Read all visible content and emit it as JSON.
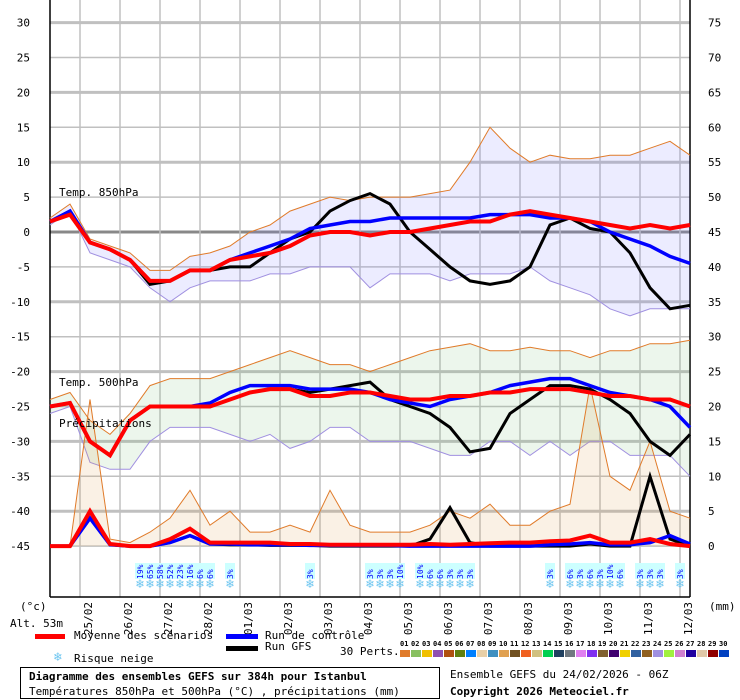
{
  "chart_data": {
    "type": "line",
    "time_step_hours": 12,
    "x_tick_labels": [
      "25/02",
      "26/02",
      "27/02",
      "28/02",
      "01/03",
      "02/03",
      "03/03",
      "04/03",
      "05/03",
      "06/03",
      "07/03",
      "08/03",
      "09/03",
      "10/03",
      "11/03",
      "12/03"
    ],
    "y_left": {
      "unit": "(°c)",
      "ylim": [
        -45,
        30
      ],
      "ticks": [
        30,
        25,
        20,
        15,
        10,
        5,
        0,
        -5,
        -10,
        -15,
        -20,
        -25,
        -30,
        -35,
        -40,
        -45
      ]
    },
    "y_right": {
      "unit": "(mm)",
      "ylim": [
        0,
        75
      ],
      "ticks": [
        75,
        70,
        65,
        60,
        55,
        50,
        45,
        40,
        35,
        30,
        25,
        20,
        15,
        10,
        5,
        0
      ]
    },
    "grid": true,
    "panels": {
      "t850": {
        "label": "Temp. 850hPa",
        "mean": [
          1.5,
          2.5,
          -1.5,
          -2.5,
          -4,
          -7,
          -7,
          -5.5,
          -5.5,
          -4,
          -3.5,
          -3,
          -2,
          -0.5,
          0,
          0,
          -0.5,
          0,
          0,
          0.5,
          1,
          1.5,
          1.5,
          2.5,
          3,
          2.5,
          2,
          1.5,
          1,
          0.5,
          1,
          0.5,
          1
        ],
        "control": [
          1.5,
          3,
          -1.5,
          -2.5,
          -4,
          -7,
          -7,
          -5.5,
          -5.5,
          -4,
          -3,
          -2,
          -1,
          0.5,
          1,
          1.5,
          1.5,
          2,
          2,
          2,
          2,
          2,
          2.5,
          2.5,
          2.5,
          2,
          2,
          1.5,
          0,
          -1,
          -2,
          -3.5,
          -4.5
        ],
        "gfs": [
          1.5,
          3,
          -1.5,
          -2.5,
          -4,
          -7.5,
          -7,
          -5.5,
          -5.5,
          -5,
          -5,
          -3,
          -1,
          0,
          3,
          4.5,
          5.5,
          4,
          0,
          -2.5,
          -5,
          -7,
          -7.5,
          -7,
          -5,
          1,
          2,
          0.5,
          0,
          -3,
          -8,
          -11,
          -10.5
        ],
        "perturbations_max": [
          2,
          4,
          -1,
          -2,
          -3,
          -5.5,
          -5.5,
          -3.5,
          -3,
          -2,
          0,
          1,
          3,
          4,
          5,
          4.5,
          5,
          5,
          5,
          5.5,
          6,
          10,
          15,
          12,
          10,
          11,
          10.5,
          10.5,
          11,
          11,
          12,
          13,
          11
        ],
        "perturbations_min": [
          1,
          3,
          -3,
          -4,
          -5,
          -8,
          -10,
          -8,
          -7,
          -7,
          -7,
          -6,
          -6,
          -5,
          -5,
          -5,
          -8,
          -6,
          -6,
          -6,
          -7,
          -6,
          -6,
          -6,
          -5,
          -7,
          -8,
          -9,
          -11,
          -12,
          -11,
          -11,
          -11
        ]
      },
      "t500": {
        "label": "Temp. 500hPa",
        "mean": [
          -25,
          -24.5,
          -30,
          -32,
          -27,
          -25,
          -25,
          -25,
          -25,
          -24,
          -23,
          -22.5,
          -22.5,
          -23.5,
          -23.5,
          -23,
          -23,
          -23.5,
          -24,
          -24,
          -23.5,
          -23.5,
          -23,
          -23,
          -22.5,
          -22.5,
          -22.5,
          -23,
          -23.5,
          -23.5,
          -24,
          -24,
          -25
        ],
        "control": [
          -25,
          -24.5,
          -30,
          -32,
          -27,
          -25,
          -25,
          -25,
          -24.5,
          -23,
          -22,
          -22,
          -22,
          -22.5,
          -22.5,
          -22.5,
          -23,
          -24,
          -24.5,
          -25,
          -24,
          -23.5,
          -23,
          -22,
          -21.5,
          -21,
          -21,
          -22,
          -23,
          -23.5,
          -24,
          -25,
          -28
        ],
        "gfs": [
          -25,
          -24.5,
          -30,
          -32,
          -27,
          -25,
          -25,
          -25,
          -25,
          -24,
          -23,
          -22.5,
          -22.5,
          -23,
          -22.5,
          -22,
          -21.5,
          -24,
          -25,
          -26,
          -28,
          -31.5,
          -31,
          -26,
          -24,
          -22,
          -22,
          -22.5,
          -24,
          -26,
          -30,
          -32,
          -29
        ],
        "perturbations_max": [
          -24,
          -23,
          -27,
          -29,
          -26,
          -22,
          -21,
          -21,
          -21,
          -20,
          -19,
          -18,
          -17,
          -18,
          -19,
          -19,
          -20,
          -19,
          -18,
          -17,
          -16.5,
          -16,
          -17,
          -17,
          -16.5,
          -17,
          -17,
          -18,
          -17,
          -17,
          -16,
          -16,
          -15.5
        ],
        "perturbations_min": [
          -26,
          -25,
          -33,
          -34,
          -34,
          -30,
          -28,
          -28,
          -28,
          -29,
          -30,
          -29,
          -31,
          -30,
          -28,
          -28,
          -30,
          -30,
          -30,
          -31,
          -32,
          -32,
          -30,
          -30,
          -32,
          -30,
          -32,
          -30,
          -30,
          -32,
          -32,
          -32,
          -35
        ]
      },
      "precip": {
        "label": "Précipitations",
        "mean": [
          0,
          0,
          5,
          0.3,
          0,
          0,
          1,
          2.5,
          0.5,
          0.5,
          0.5,
          0.5,
          0.3,
          0.3,
          0.2,
          0.2,
          0.2,
          0.2,
          0.2,
          0.3,
          0.2,
          0.3,
          0.4,
          0.5,
          0.5,
          0.7,
          0.8,
          1.5,
          0.5,
          0.5,
          1,
          0.3,
          0
        ],
        "control": [
          0,
          0,
          4,
          0.2,
          0,
          0,
          0.5,
          1.5,
          0.3,
          0.3,
          0.2,
          0.2,
          0.2,
          0.1,
          0.1,
          0.1,
          0.1,
          0.1,
          0,
          0,
          0,
          0,
          0,
          0,
          0,
          0.2,
          0.3,
          0.5,
          0.2,
          0.2,
          0.5,
          1.5,
          0.3
        ],
        "gfs": [
          0,
          0,
          4,
          0.2,
          0,
          0,
          0.5,
          1.5,
          0.3,
          0.2,
          0.2,
          0.1,
          0.1,
          0.1,
          0,
          0,
          0,
          0,
          0,
          1,
          5.5,
          0.5,
          0,
          0,
          0,
          0,
          0,
          0.3,
          0,
          0,
          10,
          1,
          0
        ],
        "perturbations_max": [
          0,
          0,
          21,
          1,
          0.5,
          2,
          4,
          8,
          3,
          5,
          2,
          2,
          3,
          2,
          8,
          3,
          2,
          2,
          2,
          3,
          5,
          4,
          6,
          3,
          3,
          5,
          6,
          23,
          10,
          8,
          15,
          5,
          4
        ]
      }
    },
    "snow_risk": [
      {
        "hour": 54,
        "pct": "19%"
      },
      {
        "hour": 60,
        "pct": "65%"
      },
      {
        "hour": 66,
        "pct": "58%"
      },
      {
        "hour": 72,
        "pct": "52%"
      },
      {
        "hour": 78,
        "pct": "23%"
      },
      {
        "hour": 84,
        "pct": "16%"
      },
      {
        "hour": 90,
        "pct": "6%"
      },
      {
        "hour": 96,
        "pct": "6%"
      },
      {
        "hour": 108,
        "pct": "3%"
      },
      {
        "hour": 156,
        "pct": "3%"
      },
      {
        "hour": 192,
        "pct": "3%"
      },
      {
        "hour": 198,
        "pct": "3%"
      },
      {
        "hour": 204,
        "pct": "3%"
      },
      {
        "hour": 210,
        "pct": "10%"
      },
      {
        "hour": 222,
        "pct": "10%"
      },
      {
        "hour": 228,
        "pct": "6%"
      },
      {
        "hour": 234,
        "pct": "6%"
      },
      {
        "hour": 240,
        "pct": "3%"
      },
      {
        "hour": 246,
        "pct": "3%"
      },
      {
        "hour": 252,
        "pct": "3%"
      },
      {
        "hour": 300,
        "pct": "3%"
      },
      {
        "hour": 312,
        "pct": "6%"
      },
      {
        "hour": 318,
        "pct": "3%"
      },
      {
        "hour": 324,
        "pct": "6%"
      },
      {
        "hour": 330,
        "pct": "3%"
      },
      {
        "hour": 336,
        "pct": "10%"
      },
      {
        "hour": 342,
        "pct": "6%"
      },
      {
        "hour": 354,
        "pct": "3%"
      },
      {
        "hour": 360,
        "pct": "3%"
      },
      {
        "hour": 366,
        "pct": "3%"
      },
      {
        "hour": 378,
        "pct": "3%"
      }
    ],
    "colors": {
      "mean": "#ff0000",
      "control": "#0000ff",
      "gfs": "#000000",
      "snow": "#6ec6f0"
    }
  },
  "labels": {
    "alt": "Alt. 53m",
    "legend_mean": "Moyenne des scénarios",
    "legend_control": "Run de contrôle",
    "legend_gfs": "Run GFS",
    "legend_snow": "Risque neige",
    "perts_label": "30 Perts.",
    "title": "Diagramme des ensembles GEFS sur 384h pour Istanbul",
    "subtitle": "Températures 850hPa et 500hPa (°C) , précipitations (mm)",
    "run": "Ensemble GEFS du 24/02/2026 - 06Z",
    "copyright": "Copyright 2026 Meteociel.fr"
  },
  "perturbations": [
    {
      "n": "01",
      "color": "#e07b2a"
    },
    {
      "n": "02",
      "color": "#88c060"
    },
    {
      "n": "03",
      "color": "#f0c000"
    },
    {
      "n": "04",
      "color": "#9050b0"
    },
    {
      "n": "05",
      "color": "#b05010"
    },
    {
      "n": "06",
      "color": "#608010"
    },
    {
      "n": "07",
      "color": "#0080ff"
    },
    {
      "n": "08",
      "color": "#e8d0a8"
    },
    {
      "n": "09",
      "color": "#4090c0"
    },
    {
      "n": "10",
      "color": "#e0a050"
    },
    {
      "n": "11",
      "color": "#705020"
    },
    {
      "n": "12",
      "color": "#f06020"
    },
    {
      "n": "13",
      "color": "#d0c080"
    },
    {
      "n": "14",
      "color": "#00d050"
    },
    {
      "n": "15",
      "color": "#204060"
    },
    {
      "n": "16",
      "color": "#707880"
    },
    {
      "n": "17",
      "color": "#e080f0"
    },
    {
      "n": "18",
      "color": "#8030f0"
    },
    {
      "n": "19",
      "color": "#806030"
    },
    {
      "n": "20",
      "color": "#400070"
    },
    {
      "n": "21",
      "color": "#f0d000"
    },
    {
      "n": "22",
      "color": "#3060a0"
    },
    {
      "n": "23",
      "color": "#906020"
    },
    {
      "n": "24",
      "color": "#a090e0"
    },
    {
      "n": "25",
      "color": "#a0f040"
    },
    {
      "n": "26",
      "color": "#d080d0"
    },
    {
      "n": "27",
      "color": "#2000a0"
    },
    {
      "n": "28",
      "color": "#e0c8a8"
    },
    {
      "n": "29",
      "color": "#900000"
    },
    {
      "n": "30",
      "color": "#0040c0"
    }
  ]
}
